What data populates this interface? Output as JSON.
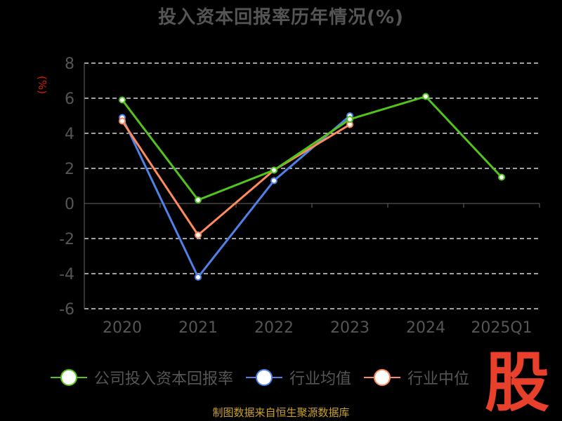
{
  "chart_data": {
    "type": "line",
    "title": "投入资本回报率历年情况(%)",
    "unit_label": "(%)",
    "categories": [
      "2020",
      "2021",
      "2022",
      "2023",
      "2024",
      "2025Q1"
    ],
    "ylim": [
      -6,
      8
    ],
    "yticks": [
      "8",
      "6",
      "4",
      "2",
      "0",
      "-2",
      "-4",
      "-6"
    ],
    "grid": true,
    "legend_position": "bottom",
    "series": [
      {
        "name": "公司投入资本回报率",
        "color": "#52c41a",
        "values": [
          5.9,
          0.2,
          1.9,
          4.8,
          6.1,
          1.5
        ]
      },
      {
        "name": "行业均值",
        "color": "#4f81e8",
        "values": [
          4.9,
          -4.2,
          1.3,
          5.0,
          null,
          null
        ]
      },
      {
        "name": "行业中位",
        "color": "#ff8a5c",
        "values": [
          4.7,
          -1.8,
          1.9,
          4.5,
          null,
          null
        ]
      }
    ]
  },
  "watermark": "股",
  "source": "制图数据来自恒生聚源数据库"
}
